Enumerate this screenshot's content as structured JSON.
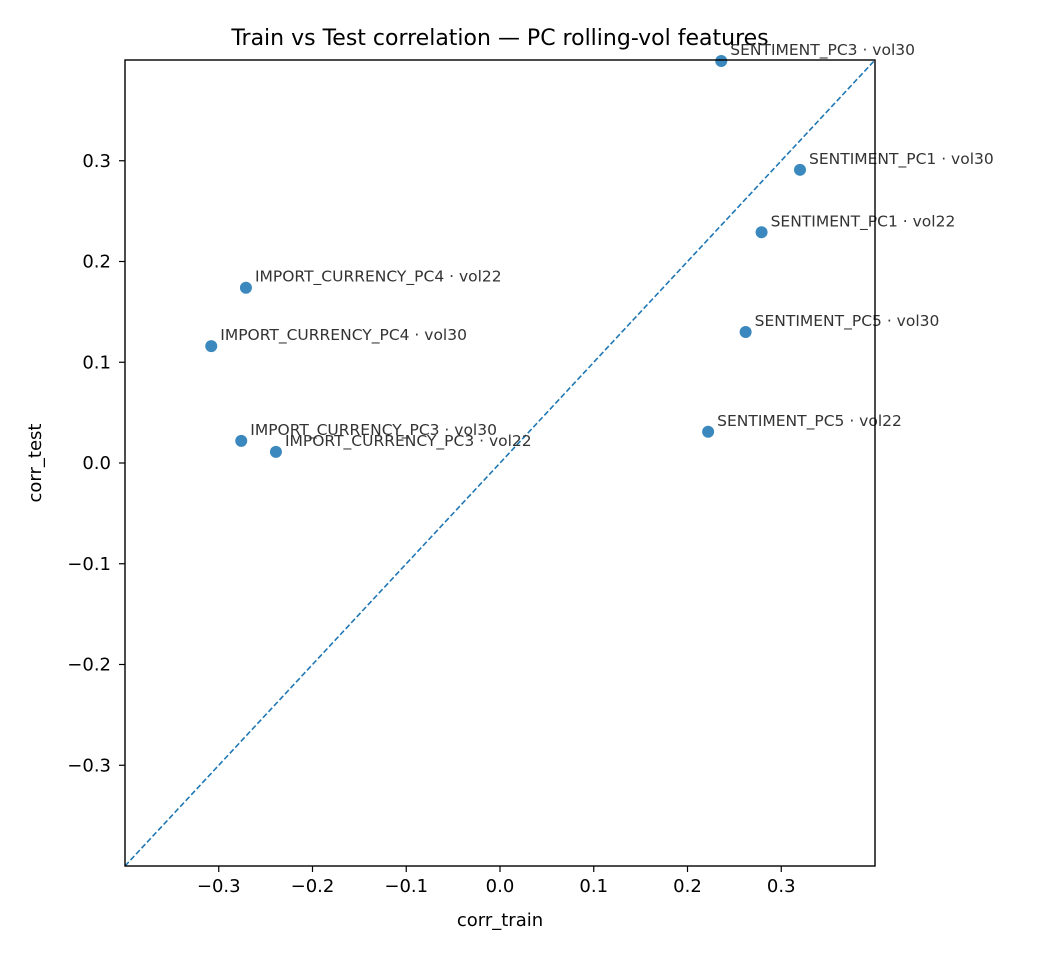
{
  "chart_data": {
    "type": "scatter",
    "title": "Train vs Test correlation — PC rolling-vol features",
    "xlabel": "corr_train",
    "ylabel": "corr_test",
    "xlim": [
      -0.4,
      0.4
    ],
    "ylim": [
      -0.4,
      0.4
    ],
    "xticks": [
      -0.3,
      -0.2,
      -0.1,
      0.0,
      0.1,
      0.2,
      0.3
    ],
    "yticks": [
      -0.3,
      -0.2,
      -0.1,
      0.0,
      0.1,
      0.2,
      0.3
    ],
    "xtick_labels": [
      "−0.3",
      "−0.2",
      "−0.1",
      "0.0",
      "0.1",
      "0.2",
      "0.3"
    ],
    "ytick_labels": [
      "−0.3",
      "−0.2",
      "−0.1",
      "0.0",
      "0.1",
      "0.2",
      "0.3"
    ],
    "reference_line": "y = x (dashed)",
    "grid": false,
    "points": [
      {
        "label": "SENTIMENT_PC3 · vol30",
        "x": 0.236,
        "y": 0.399
      },
      {
        "label": "SENTIMENT_PC1 · vol30",
        "x": 0.32,
        "y": 0.291
      },
      {
        "label": "SENTIMENT_PC1 · vol22",
        "x": 0.279,
        "y": 0.229
      },
      {
        "label": "SENTIMENT_PC5 · vol30",
        "x": 0.262,
        "y": 0.13
      },
      {
        "label": "SENTIMENT_PC5 · vol22",
        "x": 0.222,
        "y": 0.031
      },
      {
        "label": "IMPORT_CURRENCY_PC4 · vol22",
        "x": -0.271,
        "y": 0.174
      },
      {
        "label": "IMPORT_CURRENCY_PC4 · vol30",
        "x": -0.308,
        "y": 0.116
      },
      {
        "label": "IMPORT_CURRENCY_PC3 · vol30",
        "x": -0.276,
        "y": 0.022
      },
      {
        "label": "IMPORT_CURRENCY_PC3 · vol22",
        "x": -0.239,
        "y": 0.011
      }
    ],
    "colors": {
      "point": "#1f77b4",
      "reference_line": "#1f77b4"
    }
  }
}
